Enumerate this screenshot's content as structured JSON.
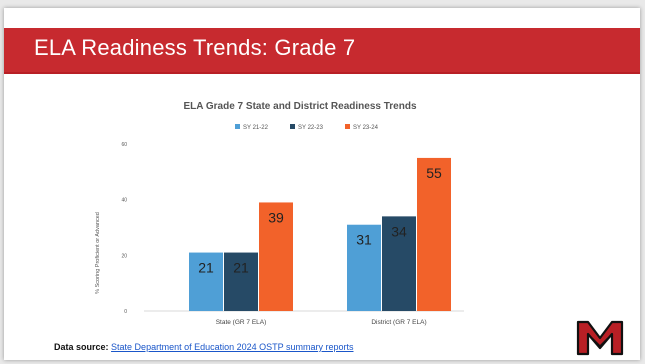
{
  "slide": {
    "title": "ELA Readiness Trends: Grade 7",
    "source_prefix": "Data source:",
    "source_link": "State Department of Education 2024 OSTP summary reports",
    "colors": {
      "banner": "#c72a2f",
      "link": "#1a56c9"
    }
  },
  "chart_data": {
    "type": "bar",
    "title": "ELA Grade 7 State and District Readiness Trends",
    "ylabel": "% Scoring Proficient or Advanced",
    "xlabel": "",
    "ylim": [
      0,
      60
    ],
    "yticks": [
      0,
      20,
      40,
      60
    ],
    "grid": false,
    "legend_position": "top",
    "categories": [
      "State (GR 7 ELA)",
      "District (GR 7 ELA)"
    ],
    "series": [
      {
        "name": "SY 21-22",
        "color": "#4f9fd6",
        "values": [
          21,
          31
        ]
      },
      {
        "name": "SY 22-23",
        "color": "#264a66",
        "values": [
          21,
          34
        ]
      },
      {
        "name": "SY 23-24",
        "color": "#f2622a",
        "values": [
          39,
          55
        ]
      }
    ]
  }
}
